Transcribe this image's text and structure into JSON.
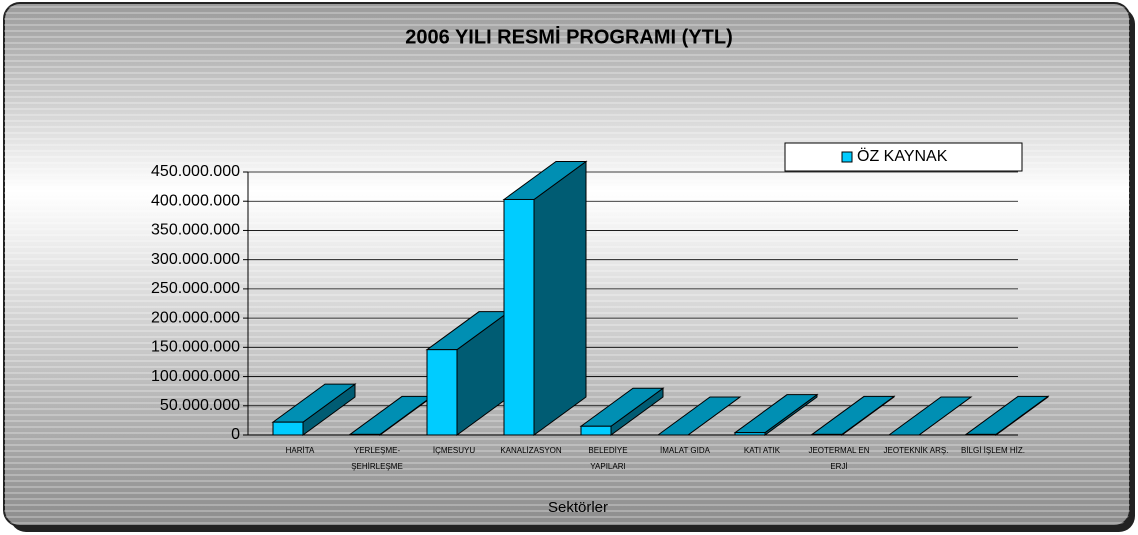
{
  "chart_data": {
    "type": "bar3d",
    "title": "2006 YILI RESMİ PROGRAMI (YTL)",
    "x_label": "Sektörler",
    "categories": [
      "HARİTA",
      "YERLEŞME- ŞEHİRLEŞME",
      "İÇMESUYU",
      "KANALİZASYON",
      "BELEDİYE YAPILARI",
      "İMALAT GIDA",
      "KATI ATIK",
      "JEOTERMAL EN ERJİ",
      "JEOTEKNİK ARŞ.",
      "BİLGİ İŞLEM HİZ."
    ],
    "series": [
      {
        "name": "ÖZ KAYNAK",
        "color": "#00ccff",
        "values": [
          22000000,
          1000000,
          146000000,
          403000000,
          15000000,
          0,
          4000000,
          1000000,
          0,
          1000000
        ]
      }
    ],
    "ylim": [
      0,
      450000000
    ],
    "yticks": [
      0,
      {
        "value": 50000000,
        "label": "50.000.000"
      },
      {
        "value": 100000000,
        "label": "100.000.000"
      },
      {
        "value": 150000000,
        "label": "150.000.000"
      },
      {
        "value": 200000000,
        "label": "200.000.000"
      },
      {
        "value": 250000000,
        "label": "250.000.000"
      },
      {
        "value": 300000000,
        "label": "300.000.000"
      },
      {
        "value": 350000000,
        "label": "350.000.000"
      },
      {
        "value": 400000000,
        "label": "400.000.000"
      },
      {
        "value": 450000000,
        "label": "450.000.000"
      }
    ],
    "grid": true,
    "legend": "top-right"
  }
}
